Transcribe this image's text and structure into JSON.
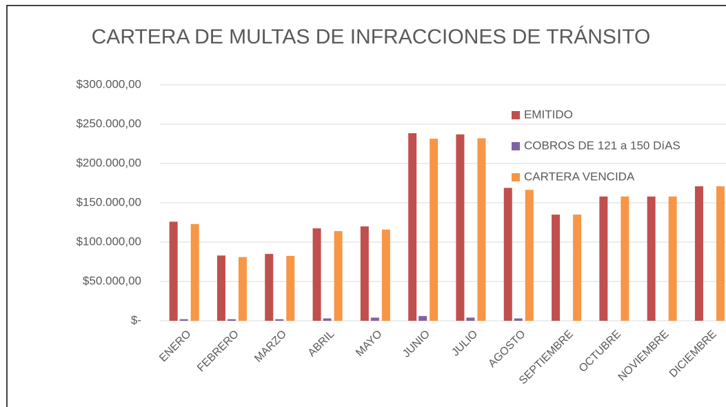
{
  "chart_data": {
    "type": "bar",
    "title": "CARTERA DE MULTAS DE INFRACCIONES DE TRÁNSITO",
    "categories": [
      "ENERO",
      "FEBRERO",
      "MARZO",
      "ABRIL",
      "MAYO",
      "JUNIO",
      "JULIO",
      "AGOSTO",
      "SEPTIEMBRE",
      "OCTUBRE",
      "NOVIEMBRE",
      "DICIEMBRE"
    ],
    "series": [
      {
        "name": "EMITIDO",
        "color": "#c0504d",
        "values": [
          126000,
          83000,
          85000,
          117500,
          120000,
          238500,
          237000,
          169000,
          135000,
          158000,
          158000,
          171000
        ]
      },
      {
        "name": "COBROS DE 121 a 150 DíAS",
        "color": "#8064a2",
        "values": [
          2000,
          2000,
          2000,
          3000,
          4000,
          6000,
          4000,
          3000,
          0,
          0,
          0,
          0
        ]
      },
      {
        "name": "CARTERA VENCIDA",
        "color": "#f79646",
        "values": [
          123000,
          81000,
          82500,
          114000,
          116000,
          231500,
          232000,
          166500,
          135000,
          158000,
          158000,
          171000
        ]
      }
    ],
    "ylim": [
      0,
      300000
    ],
    "yticks": [
      {
        "value": 0,
        "label": "$-"
      },
      {
        "value": 50000,
        "label": "$50.000,00"
      },
      {
        "value": 100000,
        "label": "$100.000,00"
      },
      {
        "value": 150000,
        "label": "$150.000,00"
      },
      {
        "value": 200000,
        "label": "$200.000,00"
      },
      {
        "value": 250000,
        "label": "$250.000,00"
      },
      {
        "value": 300000,
        "label": "$300.000,00"
      }
    ],
    "grid": true,
    "legend": "right"
  }
}
